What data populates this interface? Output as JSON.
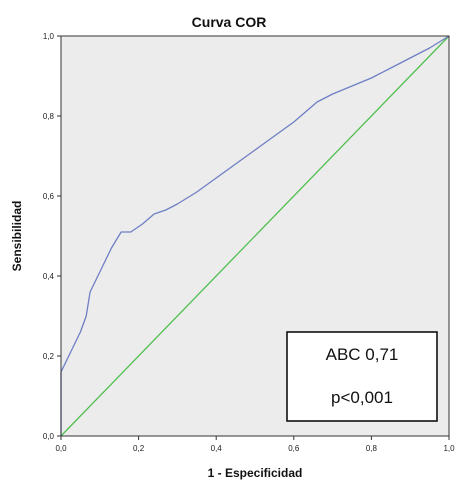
{
  "chart_data": {
    "type": "line",
    "title": "Curva COR",
    "xlabel": "1 - Especificidad",
    "ylabel": "Sensibilidad",
    "xlim": [
      0,
      1
    ],
    "ylim": [
      0,
      1
    ],
    "x_ticks": [
      "0,0",
      "0,2",
      "0,4",
      "0,6",
      "0,8",
      "1,0"
    ],
    "y_ticks": [
      "0,0",
      "0,2",
      "0,4",
      "0,6",
      "0,8",
      "1,0"
    ],
    "grid": false,
    "background_color": "#ececec",
    "series": [
      {
        "color": "#6e7fc4",
        "points": [
          [
            0.0,
            0.0
          ],
          [
            0.0,
            0.16
          ],
          [
            0.01,
            0.18
          ],
          [
            0.03,
            0.22
          ],
          [
            0.05,
            0.26
          ],
          [
            0.065,
            0.3
          ],
          [
            0.075,
            0.36
          ],
          [
            0.09,
            0.39
          ],
          [
            0.11,
            0.43
          ],
          [
            0.13,
            0.47
          ],
          [
            0.155,
            0.51
          ],
          [
            0.18,
            0.51
          ],
          [
            0.21,
            0.53
          ],
          [
            0.24,
            0.555
          ],
          [
            0.255,
            0.56
          ],
          [
            0.27,
            0.565
          ],
          [
            0.3,
            0.58
          ],
          [
            0.35,
            0.61
          ],
          [
            0.4,
            0.645
          ],
          [
            0.45,
            0.68
          ],
          [
            0.5,
            0.715
          ],
          [
            0.55,
            0.75
          ],
          [
            0.6,
            0.785
          ],
          [
            0.63,
            0.81
          ],
          [
            0.66,
            0.835
          ],
          [
            0.7,
            0.855
          ],
          [
            0.75,
            0.875
          ],
          [
            0.8,
            0.895
          ],
          [
            0.85,
            0.92
          ],
          [
            0.9,
            0.945
          ],
          [
            0.95,
            0.97
          ],
          [
            1.0,
            1.0
          ]
        ]
      },
      {
        "color": "#4fc04f",
        "points": [
          [
            0.0,
            0.0
          ],
          [
            1.0,
            1.0
          ]
        ]
      }
    ],
    "annotation": {
      "line1": "ABC 0,71",
      "line2": "p<0,001"
    }
  }
}
